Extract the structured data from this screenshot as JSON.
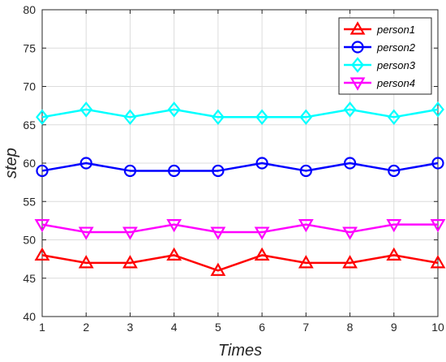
{
  "chart_data": {
    "type": "line",
    "xlabel": "Times",
    "ylabel": "step",
    "xlim": [
      1,
      10
    ],
    "ylim": [
      40,
      80
    ],
    "x": [
      1,
      2,
      3,
      4,
      5,
      6,
      7,
      8,
      9,
      10
    ],
    "xticks": [
      "1",
      "2",
      "3",
      "4",
      "5",
      "6",
      "7",
      "8",
      "9",
      "10"
    ],
    "yticks": [
      "40",
      "45",
      "50",
      "55",
      "60",
      "65",
      "70",
      "75",
      "80"
    ],
    "grid": true,
    "legend_position": "top-right",
    "series": [
      {
        "name": "person1",
        "color": "#ff0000",
        "marker": "triangle-up",
        "values": [
          48,
          47,
          47,
          48,
          46,
          48,
          47,
          47,
          48,
          47
        ]
      },
      {
        "name": "person2",
        "color": "#0000ff",
        "marker": "circle",
        "values": [
          59,
          60,
          59,
          59,
          59,
          60,
          59,
          60,
          59,
          60
        ]
      },
      {
        "name": "person3",
        "color": "#00ffff",
        "marker": "diamond",
        "values": [
          66,
          67,
          66,
          67,
          66,
          66,
          66,
          67,
          66,
          67
        ]
      },
      {
        "name": "person4",
        "color": "#ff00ff",
        "marker": "triangle-down",
        "values": [
          52,
          51,
          51,
          52,
          51,
          51,
          52,
          51,
          52,
          52
        ]
      }
    ]
  }
}
